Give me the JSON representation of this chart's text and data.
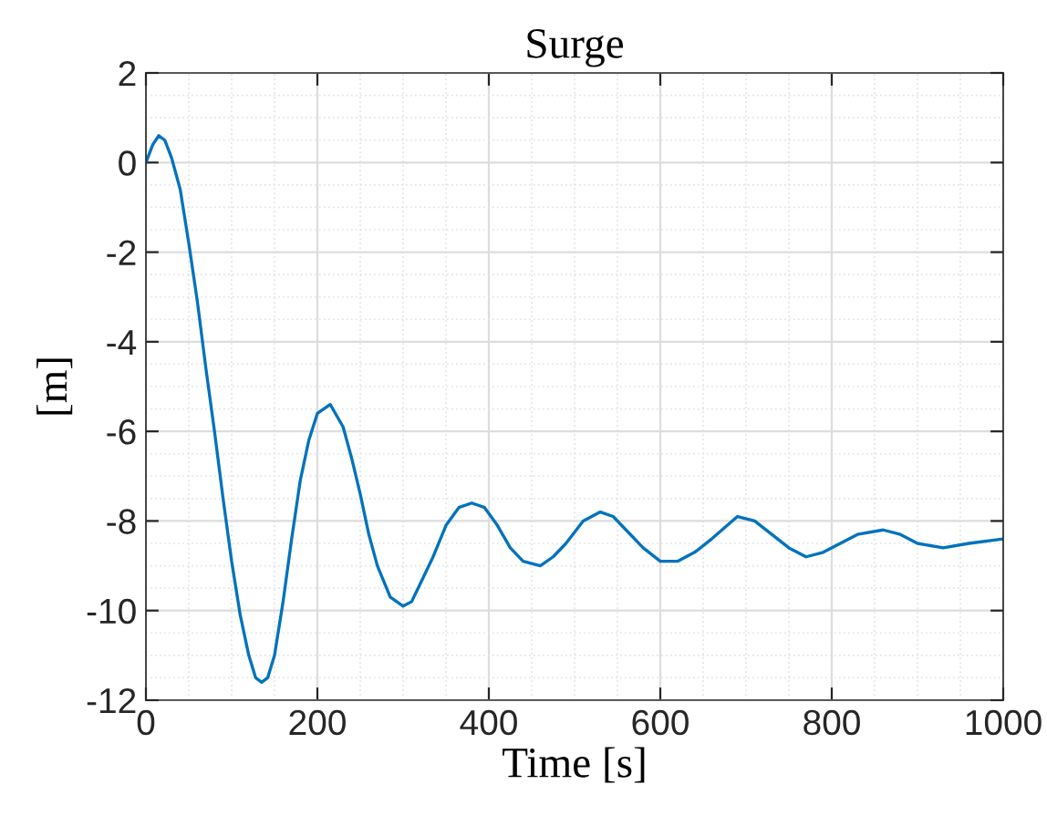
{
  "chart_data": {
    "type": "line",
    "title": "Surge",
    "xlabel": "Time [s]",
    "ylabel": "[m]",
    "x": [
      0,
      8,
      15,
      22,
      30,
      40,
      50,
      60,
      70,
      80,
      90,
      100,
      110,
      120,
      128,
      135,
      142,
      150,
      160,
      170,
      180,
      190,
      200,
      215,
      230,
      240,
      250,
      260,
      270,
      285,
      300,
      310,
      320,
      335,
      350,
      365,
      380,
      395,
      410,
      425,
      440,
      460,
      475,
      490,
      510,
      530,
      545,
      560,
      580,
      600,
      620,
      640,
      660,
      690,
      710,
      730,
      750,
      770,
      790,
      810,
      830,
      860,
      880,
      900,
      930,
      960,
      1000
    ],
    "series": [
      {
        "color": "#0072bd",
        "values": [
          0,
          0.4,
          0.6,
          0.5,
          0.1,
          -0.6,
          -1.8,
          -3.1,
          -4.6,
          -6.0,
          -7.5,
          -8.9,
          -10.1,
          -11.0,
          -11.5,
          -11.6,
          -11.5,
          -11.0,
          -9.8,
          -8.4,
          -7.1,
          -6.2,
          -5.6,
          -5.4,
          -5.9,
          -6.6,
          -7.4,
          -8.3,
          -9.0,
          -9.7,
          -9.9,
          -9.8,
          -9.4,
          -8.8,
          -8.1,
          -7.7,
          -7.6,
          -7.7,
          -8.1,
          -8.6,
          -8.9,
          -9.0,
          -8.8,
          -8.5,
          -8.0,
          -7.8,
          -7.9,
          -8.2,
          -8.6,
          -8.9,
          -8.9,
          -8.7,
          -8.4,
          -7.9,
          -8.0,
          -8.3,
          -8.6,
          -8.8,
          -8.7,
          -8.5,
          -8.3,
          -8.2,
          -8.3,
          -8.5,
          -8.6,
          -8.5,
          -8.4
        ]
      }
    ],
    "xlim": [
      0,
      1000
    ],
    "ylim": [
      -12,
      2
    ],
    "xticks": [
      0,
      200,
      400,
      600,
      800,
      1000
    ],
    "yticks": [
      -12,
      -10,
      -8,
      -6,
      -4,
      -2,
      0,
      2
    ],
    "grid": true
  }
}
